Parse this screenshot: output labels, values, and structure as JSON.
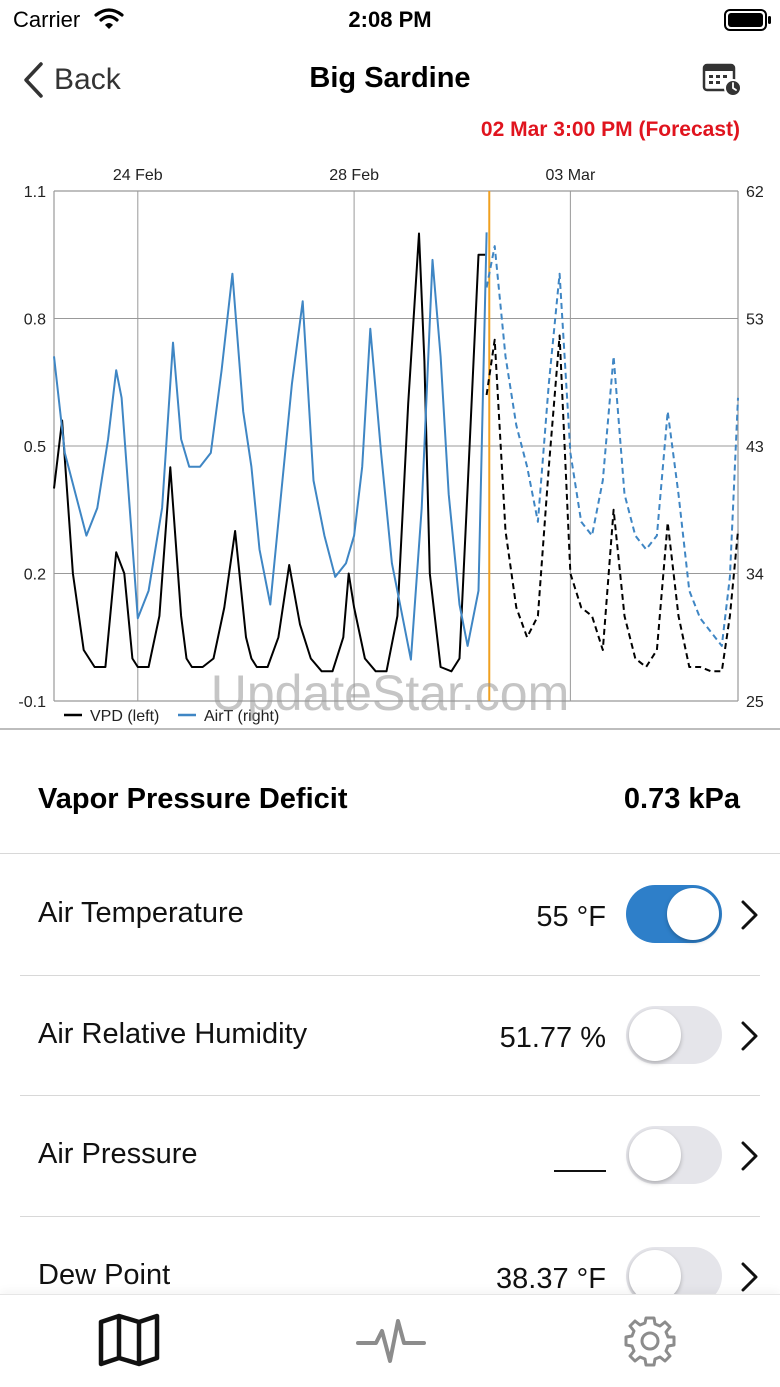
{
  "status_bar": {
    "carrier": "Carrier",
    "time": "2:08 PM"
  },
  "nav": {
    "back_label": "Back",
    "title": "Big Sardine",
    "calendar_icon": "calendar-clock-icon"
  },
  "forecast_label": "02 Mar 3:00 PM (Forecast)",
  "watermark": "UpdateStar.com",
  "chart_data": {
    "type": "line",
    "title": "",
    "x_tick_labels": [
      "24 Feb",
      "28 Feb",
      "03 Mar"
    ],
    "x_ticks_day": [
      0,
      4,
      8
    ],
    "x_range_day": [
      -1.55,
      11.1
    ],
    "forecast_start_day": 6.5,
    "left_axis": {
      "ticks": [
        "1.1",
        "0.8",
        "0.5",
        "0.2",
        "-0.1"
      ],
      "ylim": [
        -0.1,
        1.1
      ]
    },
    "right_axis": {
      "ticks": [
        "62",
        "53",
        "43",
        "34",
        "25"
      ],
      "ylim": [
        25,
        62
      ]
    },
    "legend": [
      "VPD (left)",
      "AirT (right)"
    ],
    "legend_position": "bottom-left",
    "colors": {
      "vpd": "#000000",
      "airt": "#3f86c4",
      "forecast_line": "#f0a020",
      "grid": "#999999"
    },
    "series": [
      {
        "name": "VPD (left)",
        "axis": "left",
        "x": [
          -1.55,
          -1.4,
          -1.2,
          -1.0,
          -0.8,
          -0.6,
          -0.4,
          -0.25,
          -0.1,
          0.0,
          0.2,
          0.4,
          0.6,
          0.8,
          0.9,
          1.0,
          1.2,
          1.4,
          1.6,
          1.8,
          2.0,
          2.1,
          2.2,
          2.4,
          2.6,
          2.8,
          3.0,
          3.2,
          3.4,
          3.6,
          3.8,
          3.9,
          4.0,
          4.2,
          4.4,
          4.6,
          4.8,
          5.0,
          5.2,
          5.3,
          5.4,
          5.6,
          5.8,
          5.95,
          6.1,
          6.3,
          6.45
        ],
        "y": [
          0.4,
          0.56,
          0.2,
          0.02,
          -0.02,
          -0.02,
          0.25,
          0.2,
          0.0,
          -0.02,
          -0.02,
          0.1,
          0.45,
          0.1,
          0.0,
          -0.02,
          -0.02,
          0.0,
          0.12,
          0.3,
          0.05,
          0.0,
          -0.02,
          -0.02,
          0.05,
          0.22,
          0.08,
          0.0,
          -0.03,
          -0.03,
          0.05,
          0.2,
          0.12,
          0.0,
          -0.03,
          -0.03,
          0.1,
          0.6,
          1.0,
          0.7,
          0.2,
          -0.02,
          -0.03,
          0.0,
          0.4,
          0.95,
          0.95
        ]
      },
      {
        "name": "VPD (left)",
        "axis": "left",
        "forecast": true,
        "x": [
          6.45,
          6.6,
          6.8,
          7.0,
          7.2,
          7.4,
          7.6,
          7.8,
          8.0,
          8.2,
          8.4,
          8.6,
          8.8,
          9.0,
          9.2,
          9.4,
          9.6,
          9.8,
          10.0,
          10.2,
          10.4,
          10.6,
          10.8,
          10.95,
          11.1
        ],
        "y": [
          0.62,
          0.75,
          0.3,
          0.12,
          0.05,
          0.1,
          0.45,
          0.76,
          0.2,
          0.12,
          0.1,
          0.02,
          0.35,
          0.1,
          0.0,
          -0.02,
          0.02,
          0.32,
          0.1,
          -0.02,
          -0.02,
          -0.03,
          -0.03,
          0.1,
          0.3
        ]
      },
      {
        "name": "AirT (right)",
        "axis": "right",
        "x": [
          -1.55,
          -1.35,
          -1.15,
          -0.95,
          -0.75,
          -0.55,
          -0.4,
          -0.3,
          -0.15,
          0.0,
          0.2,
          0.45,
          0.65,
          0.8,
          0.95,
          1.15,
          1.35,
          1.55,
          1.75,
          1.95,
          2.1,
          2.25,
          2.45,
          2.65,
          2.85,
          3.05,
          3.25,
          3.45,
          3.65,
          3.85,
          4.0,
          4.15,
          4.3,
          4.5,
          4.7,
          4.9,
          5.05,
          5.25,
          5.45,
          5.6,
          5.75,
          5.95,
          6.1,
          6.3,
          6.45
        ],
        "y": [
          50,
          43,
          40,
          37,
          39,
          44,
          49,
          47,
          39,
          31,
          33,
          39,
          51,
          44,
          42,
          42,
          43,
          49,
          56,
          46,
          42,
          36,
          32,
          40,
          48,
          54,
          41,
          37,
          34,
          35,
          37,
          42,
          52,
          43,
          35,
          31,
          28,
          39,
          57,
          50,
          40,
          32,
          29,
          33,
          59
        ]
      },
      {
        "name": "AirT (right)",
        "axis": "right",
        "forecast": true,
        "x": [
          6.45,
          6.6,
          6.8,
          7.0,
          7.2,
          7.4,
          7.6,
          7.8,
          8.0,
          8.2,
          8.4,
          8.6,
          8.8,
          9.0,
          9.2,
          9.4,
          9.6,
          9.8,
          10.0,
          10.2,
          10.4,
          10.6,
          10.8,
          10.95,
          11.1
        ],
        "y": [
          55,
          58,
          50,
          45,
          42,
          38,
          48,
          56,
          43,
          38,
          37,
          41,
          50,
          40,
          37,
          36,
          37,
          46,
          40,
          33,
          31,
          30,
          29,
          34,
          47
        ]
      }
    ]
  },
  "vpd_summary": {
    "label": "Vapor Pressure Deficit",
    "value": "0.73 kPa"
  },
  "sensors": [
    {
      "label": "Air Temperature",
      "value": "55 °F",
      "toggle_on": true
    },
    {
      "label": "Air Relative Humidity",
      "value": "51.77 %",
      "toggle_on": false
    },
    {
      "label": "Air Pressure",
      "value": "",
      "show_dash": true,
      "toggle_on": false
    },
    {
      "label": "Dew Point",
      "value": "38.37 °F",
      "toggle_on": false
    }
  ],
  "tab_bar": {
    "items": [
      "map-icon",
      "activity-icon",
      "gear-icon"
    ]
  }
}
